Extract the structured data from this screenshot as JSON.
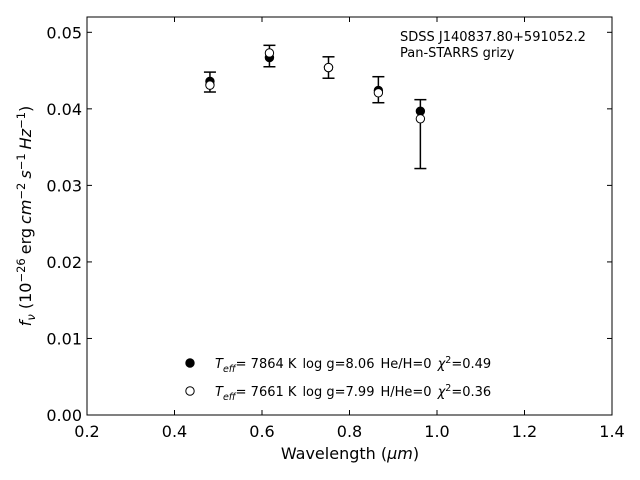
{
  "chart_data": {
    "type": "scatter",
    "xlabel": "Wavelength",
    "xlabel_unit": "μm",
    "ylabel_prefix": "f",
    "ylabel_sub": "ν",
    "ylabel_factor_base": "10",
    "ylabel_factor_exp": "−26",
    "ylabel_unit_erg": "erg",
    "ylabel_unit_cm": "cm",
    "ylabel_unit_cm_exp": "−2",
    "ylabel_unit_s": "s",
    "ylabel_unit_s_exp": "−1",
    "ylabel_unit_hz": "Hz",
    "ylabel_unit_hz_exp": "−1",
    "xlim": [
      0.2,
      1.4
    ],
    "ylim": [
      0.0,
      0.052
    ],
    "xticks": [
      0.2,
      0.4,
      0.6,
      0.8,
      1.0,
      1.2,
      1.4
    ],
    "xtick_labels": [
      "0.2",
      "0.4",
      "0.6",
      "0.8",
      "1.0",
      "1.2",
      "1.4"
    ],
    "yticks": [
      0.0,
      0.01,
      0.02,
      0.03,
      0.04,
      0.05
    ],
    "ytick_labels": [
      "0.00",
      "0.01",
      "0.02",
      "0.03",
      "0.04",
      "0.05"
    ],
    "grid": false,
    "annotation_lines": [
      "SDSS J140837.80+591052.2",
      "Pan-STARRS grizy"
    ],
    "observed": {
      "x": [
        0.481,
        0.617,
        0.752,
        0.866,
        0.962
      ],
      "y": [
        0.0435,
        0.0469,
        0.0454,
        0.0425,
        0.0367
      ],
      "err": [
        0.0013,
        0.0014,
        0.0014,
        0.0017,
        0.0045
      ]
    },
    "legend_placement": "lower-center",
    "series": [
      {
        "marker": "filled-circle",
        "color": "#000000",
        "teff_label": "T",
        "teff_sub": "eff",
        "teff_value": "=  7864 K",
        "logg": "log g=8.06",
        "composition": "He/H=0",
        "chi_symbol": "χ",
        "chi_exp": "2",
        "chi_value": "=0.49",
        "x": [
          0.481,
          0.617,
          0.752,
          0.866,
          0.962
        ],
        "y": [
          0.0436,
          0.0467,
          0.0454,
          0.0424,
          0.0397
        ]
      },
      {
        "marker": "open-circle",
        "color": "#000000",
        "teff_label": "T",
        "teff_sub": "eff",
        "teff_value": "=  7661 K",
        "logg": "log g=7.99",
        "composition": "H/He=0",
        "chi_symbol": "χ",
        "chi_exp": "2",
        "chi_value": "=0.36",
        "x": [
          0.481,
          0.617,
          0.752,
          0.866,
          0.962
        ],
        "y": [
          0.0431,
          0.0473,
          0.0454,
          0.0421,
          0.0387
        ]
      }
    ]
  }
}
